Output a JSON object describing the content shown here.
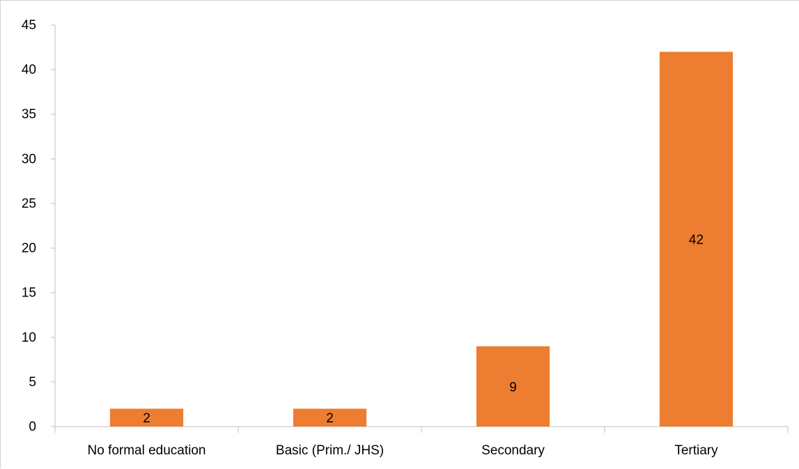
{
  "chart_data": {
    "type": "bar",
    "categories": [
      "No formal education",
      "Basic (Prim./ JHS)",
      "Secondary",
      "Tertiary"
    ],
    "values": [
      2,
      2,
      9,
      42
    ],
    "data_labels": [
      "2",
      "2",
      "9",
      "42"
    ],
    "ylim": [
      0,
      45
    ],
    "yticks": [
      0,
      5,
      10,
      15,
      20,
      25,
      30,
      35,
      40,
      45
    ],
    "grid": false,
    "legend": "none",
    "bar_color": "#ED7D31",
    "axis_color": "#BFBFBF"
  }
}
